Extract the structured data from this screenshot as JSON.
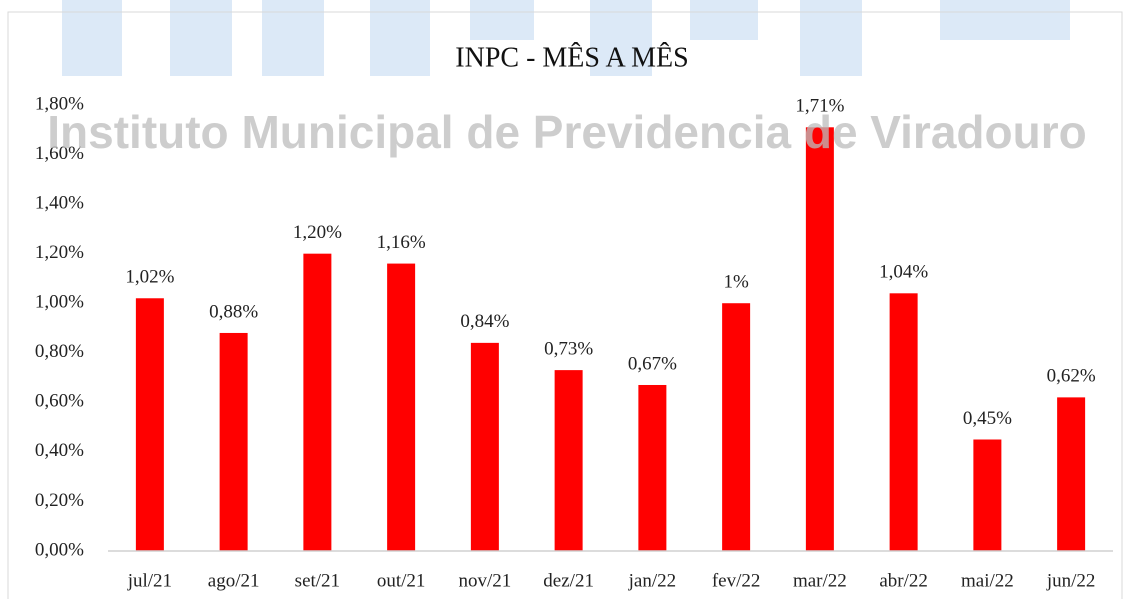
{
  "chart_data": {
    "type": "bar",
    "title": "INPC - MÊS A MÊS",
    "watermark": "Instituto Municipal de Previdencia de Viradouro",
    "categories": [
      "jul/21",
      "ago/21",
      "set/21",
      "out/21",
      "nov/21",
      "dez/21",
      "jan/22",
      "fev/22",
      "mar/22",
      "abr/22",
      "mai/22",
      "jun/22"
    ],
    "values": [
      1.02,
      0.88,
      1.2,
      1.16,
      0.84,
      0.73,
      0.67,
      1,
      1.71,
      1.04,
      0.45,
      0.62
    ],
    "value_labels": [
      "1,02%",
      "0,88%",
      "1,20%",
      "1,16%",
      "0,84%",
      "0,73%",
      "0,67%",
      "1%",
      "1,71%",
      "1,04%",
      "0,45%",
      "0,62%"
    ],
    "color": "#ff0000",
    "ylim": [
      0,
      1.8
    ],
    "yticks": [
      {
        "value": 0,
        "label": "0,00%"
      },
      {
        "value": 0.2,
        "label": "0,20%"
      },
      {
        "value": 0.4,
        "label": "0,40%"
      },
      {
        "value": 0.6,
        "label": "0,60%"
      },
      {
        "value": 0.8,
        "label": "0,80%"
      },
      {
        "value": 1.0,
        "label": "1,00%"
      },
      {
        "value": 1.2,
        "label": "1,20%"
      },
      {
        "value": 1.4,
        "label": "1,40%"
      },
      {
        "value": 1.6,
        "label": "1,60%"
      },
      {
        "value": 1.8,
        "label": "1,80%"
      }
    ],
    "grid": false
  }
}
